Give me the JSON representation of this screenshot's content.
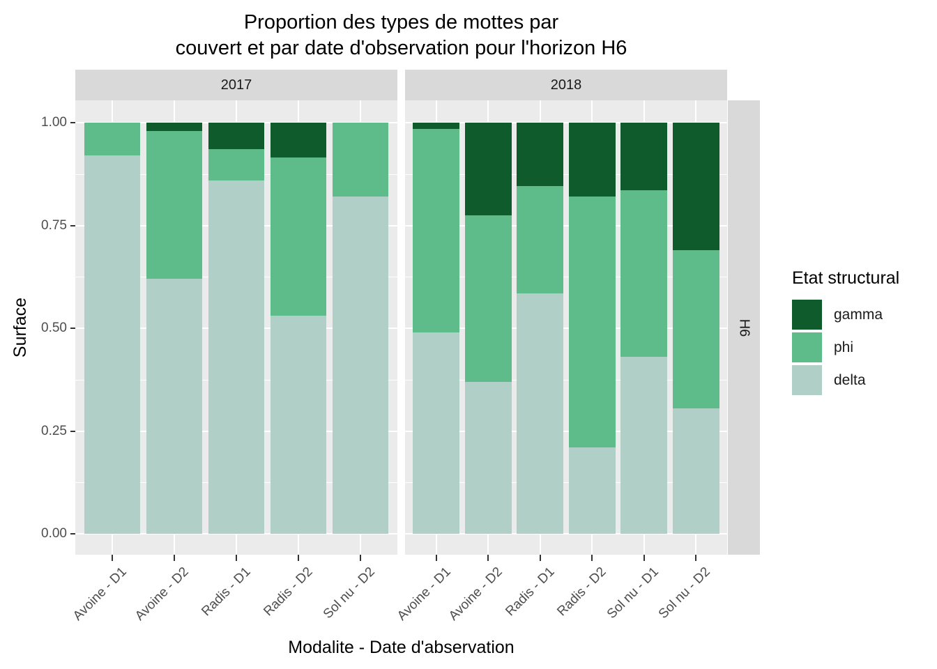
{
  "chart_data": {
    "type": "bar",
    "stacked": true,
    "title": "Proportion des types de mottes par\ncouvert et par date d'observation pour l'horizon H6",
    "xlabel": "Modalite - Date d'abservation",
    "ylabel": "Surface",
    "ylim": [
      0,
      1
    ],
    "grid": true,
    "facet_row_label": "H6",
    "yticks": [
      {
        "label": "0.00",
        "value": 0.0
      },
      {
        "label": "0.25",
        "value": 0.25
      },
      {
        "label": "0.50",
        "value": 0.5
      },
      {
        "label": "0.75",
        "value": 0.75
      },
      {
        "label": "1.00",
        "value": 1.0
      }
    ],
    "facets": [
      {
        "label": "2017",
        "categories": [
          "Avoine - D1",
          "Avoine - D2",
          "Radis - D1",
          "Radis - D2",
          "Sol nu - D2"
        ],
        "series": [
          {
            "name": "delta",
            "values": [
              0.92,
              0.62,
              0.86,
              0.53,
              0.82
            ]
          },
          {
            "name": "phi",
            "values": [
              0.08,
              0.36,
              0.075,
              0.385,
              0.18
            ]
          },
          {
            "name": "gamma",
            "values": [
              0.0,
              0.02,
              0.065,
              0.085,
              0.0
            ]
          }
        ]
      },
      {
        "label": "2018",
        "categories": [
          "Avoine - D1",
          "Avoine - D2",
          "Radis - D1",
          "Radis - D2",
          "Sol nu - D1",
          "Sol nu - D2"
        ],
        "series": [
          {
            "name": "delta",
            "values": [
              0.49,
              0.37,
              0.585,
              0.21,
              0.43,
              0.305
            ]
          },
          {
            "name": "phi",
            "values": [
              0.495,
              0.405,
              0.26,
              0.61,
              0.405,
              0.385
            ]
          },
          {
            "name": "gamma",
            "values": [
              0.015,
              0.225,
              0.155,
              0.18,
              0.165,
              0.31
            ]
          }
        ]
      }
    ],
    "legend": {
      "title": "Etat structural",
      "position": "right",
      "entries": [
        {
          "label": "gamma",
          "color": "#0F5B2B"
        },
        {
          "label": "phi",
          "color": "#5EBC8B"
        },
        {
          "label": "delta",
          "color": "#B0CFC7"
        }
      ]
    },
    "colors": {
      "gamma": "#0F5B2B",
      "phi": "#5EBC8B",
      "delta": "#B0CFC7",
      "panel_bg": "#EBEBEB",
      "strip_bg": "#D9D9D9",
      "gridline": "#FFFFFF",
      "tick": "#333333",
      "tick_label": "#4D4D4D"
    }
  }
}
